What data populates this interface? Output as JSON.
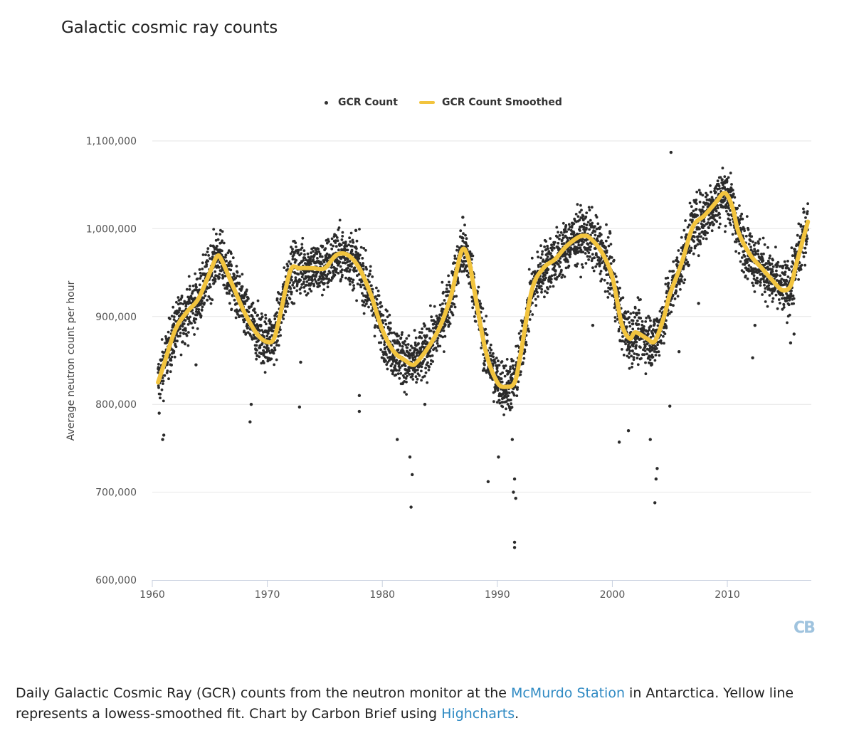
{
  "page_title": "Galactic cosmic ray counts",
  "chart_data": {
    "type": "scatter",
    "title": "Galactic cosmic ray counts",
    "xlabel": "",
    "ylabel": "Average neutron count per hour",
    "xlim": [
      1960,
      2017.3
    ],
    "ylim": [
      600000,
      1100000
    ],
    "x_ticks": [
      1960,
      1970,
      1980,
      1990,
      2000,
      2010
    ],
    "y_ticks": [
      600000,
      700000,
      800000,
      900000,
      1000000,
      1100000
    ],
    "y_tick_labels": [
      "600,000",
      "700,000",
      "800,000",
      "900,000",
      "1,000,000",
      "1,100,000"
    ],
    "grid": "horizontal",
    "legend": "top-center",
    "series": [
      {
        "name": "GCR Count",
        "kind": "scatter",
        "color": "#2b2b2b",
        "noise_spread": 22000,
        "outliers": [
          {
            "x": 1960.9,
            "y": 760000
          },
          {
            "x": 1961.0,
            "y": 765000
          },
          {
            "x": 1960.6,
            "y": 790000
          },
          {
            "x": 1963.8,
            "y": 845000
          },
          {
            "x": 1968.5,
            "y": 780000
          },
          {
            "x": 1968.6,
            "y": 800000
          },
          {
            "x": 1972.8,
            "y": 797000
          },
          {
            "x": 1972.9,
            "y": 848000
          },
          {
            "x": 1977.7,
            "y": 998000
          },
          {
            "x": 1978.0,
            "y": 792000
          },
          {
            "x": 1978.0,
            "y": 810000
          },
          {
            "x": 1982.5,
            "y": 683000
          },
          {
            "x": 1982.6,
            "y": 720000
          },
          {
            "x": 1982.4,
            "y": 740000
          },
          {
            "x": 1981.3,
            "y": 760000
          },
          {
            "x": 1983.7,
            "y": 800000
          },
          {
            "x": 1987.0,
            "y": 1013000
          },
          {
            "x": 1989.2,
            "y": 712000
          },
          {
            "x": 1990.1,
            "y": 740000
          },
          {
            "x": 1991.5,
            "y": 637000
          },
          {
            "x": 1991.5,
            "y": 643000
          },
          {
            "x": 1991.6,
            "y": 693000
          },
          {
            "x": 1991.4,
            "y": 700000
          },
          {
            "x": 1991.5,
            "y": 715000
          },
          {
            "x": 1991.3,
            "y": 760000
          },
          {
            "x": 1998.3,
            "y": 890000
          },
          {
            "x": 1999.8,
            "y": 995000
          },
          {
            "x": 2000.6,
            "y": 757000
          },
          {
            "x": 2001.4,
            "y": 770000
          },
          {
            "x": 2003.7,
            "y": 688000
          },
          {
            "x": 2003.8,
            "y": 715000
          },
          {
            "x": 2003.9,
            "y": 727000
          },
          {
            "x": 2003.3,
            "y": 760000
          },
          {
            "x": 2005.1,
            "y": 1087000
          },
          {
            "x": 2005.0,
            "y": 798000
          },
          {
            "x": 2005.8,
            "y": 860000
          },
          {
            "x": 2007.5,
            "y": 915000
          },
          {
            "x": 2012.2,
            "y": 853000
          },
          {
            "x": 2012.4,
            "y": 890000
          },
          {
            "x": 2015.5,
            "y": 870000
          },
          {
            "x": 2015.8,
            "y": 880000
          }
        ]
      },
      {
        "name": "GCR Count Smoothed",
        "kind": "line",
        "color": "#F2C43E",
        "x": [
          1960.5,
          1961.0,
          1962.0,
          1963.0,
          1964.0,
          1965.0,
          1965.6,
          1966.0,
          1967.0,
          1968.0,
          1969.0,
          1969.8,
          1970.5,
          1971.0,
          1972.0,
          1972.8,
          1974.0,
          1975.0,
          1976.0,
          1977.0,
          1978.0,
          1979.0,
          1980.0,
          1981.0,
          1982.0,
          1982.6,
          1983.0,
          1984.0,
          1985.0,
          1986.0,
          1986.9,
          1987.5,
          1988.0,
          1989.0,
          1990.0,
          1990.8,
          1991.5,
          1992.0,
          1993.0,
          1994.0,
          1995.0,
          1996.0,
          1997.0,
          1997.5,
          1998.0,
          1999.0,
          2000.0,
          2000.8,
          2001.5,
          2002.0,
          2003.0,
          2003.7,
          2004.5,
          2005.0,
          2006.0,
          2007.0,
          2008.0,
          2009.0,
          2009.6,
          2010.0,
          2010.5,
          2011.0,
          2012.0,
          2013.0,
          2014.0,
          2014.8,
          2015.5,
          2016.0,
          2017.0
        ],
        "y": [
          825000,
          845000,
          885000,
          905000,
          920000,
          950000,
          968000,
          965000,
          935000,
          905000,
          882000,
          872000,
          873000,
          895000,
          952000,
          955000,
          955000,
          955000,
          970000,
          970000,
          955000,
          925000,
          885000,
          860000,
          850000,
          845000,
          848000,
          865000,
          888000,
          925000,
          975000,
          965000,
          930000,
          860000,
          825000,
          820000,
          825000,
          855000,
          930000,
          955000,
          965000,
          980000,
          990000,
          992000,
          990000,
          975000,
          945000,
          892000,
          875000,
          882000,
          875000,
          872000,
          900000,
          925000,
          960000,
          1002000,
          1015000,
          1030000,
          1040000,
          1038000,
          1022000,
          995000,
          970000,
          955000,
          940000,
          930000,
          935000,
          960000,
          1008000
        ]
      }
    ]
  },
  "logo": {
    "text": "CB"
  },
  "caption": {
    "part1": "Daily Galactic Cosmic Ray (GCR) counts from the neutron monitor at the ",
    "link1": "McMurdo Station",
    "part2": " in Antarctica. Yellow line represents a lowess-smoothed fit. Chart by Carbon Brief using ",
    "link2": "Highcharts",
    "part3": "."
  },
  "colors": {
    "accent": "#F2C43E",
    "scatter": "#2b2b2b",
    "link": "#2f8ac3",
    "grid": "#e6e6e6"
  }
}
